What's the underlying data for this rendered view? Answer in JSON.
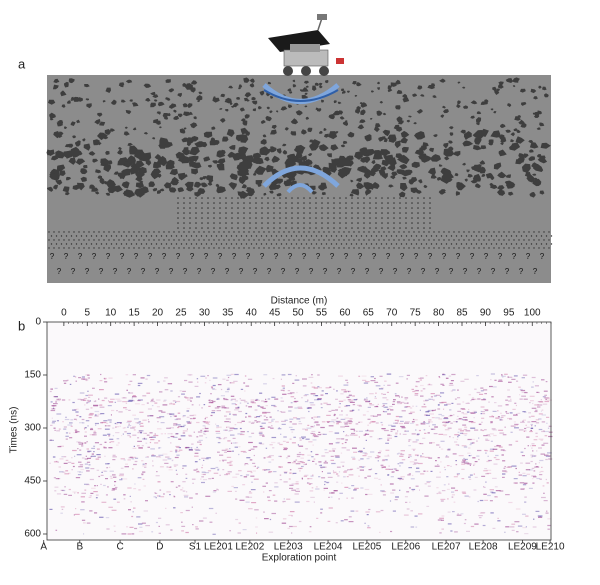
{
  "panel_a": {
    "label": "a",
    "unknown_symbol": "?"
  },
  "panel_b": {
    "label": "b",
    "x_label": "Distance (m)",
    "xlim": [
      -3.6,
      104
    ],
    "xticks": [
      0,
      5,
      10,
      15,
      20,
      25,
      30,
      35,
      40,
      45,
      50,
      55,
      60,
      65,
      70,
      75,
      80,
      85,
      90,
      95,
      100
    ],
    "y_label": "Times (ns)",
    "ylim": [
      0,
      617
    ],
    "yticks": [
      0,
      150,
      300,
      450,
      600
    ],
    "points_label": "Exploration point",
    "points": [
      "A",
      "B",
      "C",
      "D",
      "S1",
      "LE201",
      "LE202",
      "LE203",
      "LE204",
      "LE205",
      "LE206",
      "LE207",
      "LE208",
      "LE209",
      "LE210"
    ],
    "point_distances": [
      -4.3,
      3.4,
      12,
      20.5,
      28,
      33,
      39.7,
      47.9,
      56.4,
      64.7,
      73,
      81.6,
      89.5,
      97.9,
      103.8
    ]
  }
}
